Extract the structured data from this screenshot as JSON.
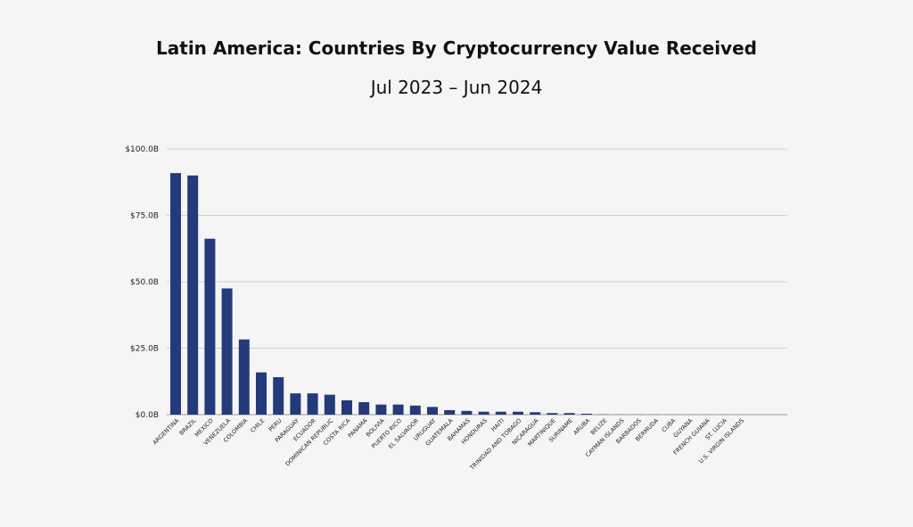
{
  "chart_data": {
    "type": "bar",
    "title": "Latin America: Countries By Cryptocurrency Value Received",
    "subtitle": "Jul 2023 – Jun 2024",
    "xlabel": "",
    "ylabel": "",
    "ylim": [
      0,
      100
    ],
    "yticks": [
      0,
      25,
      50,
      75,
      100
    ],
    "ytick_labels": [
      "$0.0B",
      "$25.0B",
      "$50.0B",
      "$75.0B",
      "$100.0B"
    ],
    "grid": true,
    "bar_color": "#253a7a",
    "categories": [
      "ARGENTINA",
      "BRAZIL",
      "MEXICO",
      "VENEZUELA",
      "COLOMBIA",
      "CHILE",
      "PERU",
      "PARAGUAY",
      "ECUADOR",
      "DOMINICAN REPUBLIC",
      "COSTA RICA",
      "PANAMA",
      "BOLIVIA",
      "PUERTO RICO",
      "EL SALVADOR",
      "URUGUAY",
      "GUATEMALA",
      "BAHAMAS",
      "HONDURAS",
      "HAITI",
      "TRINIDAD AND TOBAGO",
      "NICARAGUA",
      "MARTINIQUE",
      "SURINAME",
      "ARUBA",
      "BELIZE",
      "CAYMAN ISLANDS",
      "BARBADOS",
      "BERMUDA",
      "CUBA",
      "GUYANA",
      "FRENCH GUIANA",
      "ST. LUCIA",
      "U.S. VIRGIN ISLANDS"
    ],
    "values": [
      90.9,
      90.0,
      66.2,
      47.5,
      28.3,
      15.9,
      14.1,
      8.0,
      8.0,
      7.5,
      5.4,
      4.7,
      3.8,
      3.8,
      3.4,
      2.9,
      1.7,
      1.4,
      1.1,
      1.1,
      1.1,
      0.9,
      0.6,
      0.6,
      0.35,
      0.1,
      0.05,
      0.05,
      0.05,
      0.04,
      0.04,
      0.03,
      0.03,
      0.02
    ]
  }
}
